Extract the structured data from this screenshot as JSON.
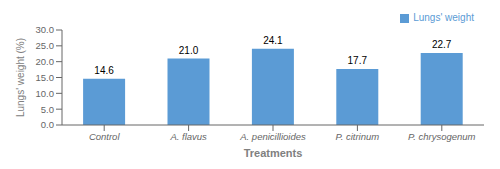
{
  "chart_data": {
    "type": "bar",
    "categories": [
      "Control",
      "A. flavus",
      "A. penicillioides",
      "P. citrinum",
      "P. chrysogenum"
    ],
    "series": [
      {
        "name": "Lungs' weight",
        "color": "#5B9BD5",
        "values": [
          14.6,
          21.0,
          24.1,
          17.7,
          22.7
        ],
        "value_labels": [
          "14.6",
          "21.0",
          "24.1",
          "17.7",
          "22.7"
        ]
      }
    ],
    "xlabel": "Treatments",
    "ylabel": "Lungs' weight (%)",
    "ylim": [
      0,
      30.0
    ],
    "yticks": [
      {
        "value": 0.0,
        "label": "0.0"
      },
      {
        "value": 5.0,
        "label": "5.0"
      },
      {
        "value": 10.0,
        "label": "10.0"
      },
      {
        "value": 15.0,
        "label": "15.0"
      },
      {
        "value": 20.0,
        "label": "20.0"
      },
      {
        "value": 25.0,
        "label": "25.0"
      },
      {
        "value": 30.0,
        "label": "30.0"
      }
    ],
    "legend": "upper right",
    "data_labels": true,
    "grid": false
  }
}
